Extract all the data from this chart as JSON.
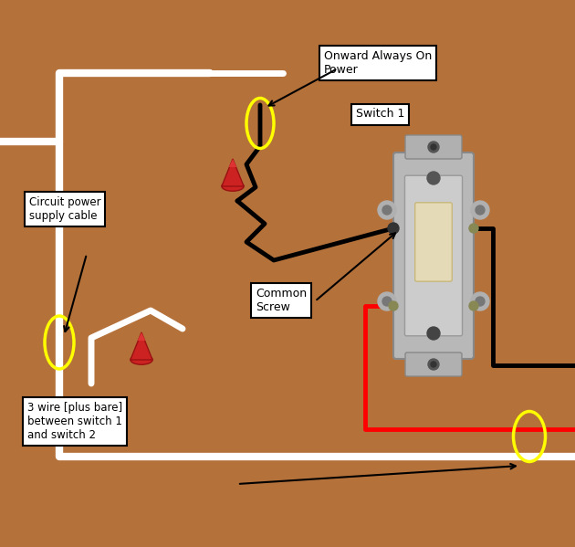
{
  "bg_color": "#b5713a",
  "fig_width": 6.3,
  "fig_height": 5.99,
  "labels": {
    "onward": "Onward Always On\nPower",
    "circuit": "Circuit power\nsupply cable",
    "common": "Common\nScrew",
    "switch1": "Switch 1",
    "threewire": "3 wire [plus bare]\nbetween switch 1\nand switch 2"
  },
  "wire_lw": 3.5,
  "white_lw": 5.0
}
